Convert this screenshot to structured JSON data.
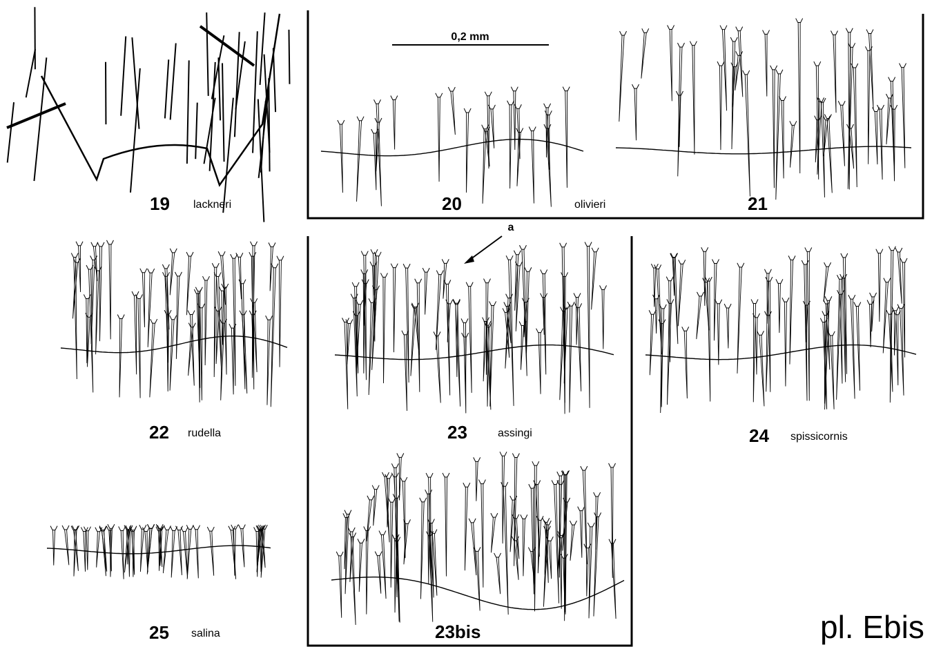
{
  "plate": "pl. Ebis",
  "scale_bar": "0,2 mm",
  "annotation": "a",
  "group_name": "olivieri",
  "figures": [
    {
      "number": "19",
      "name": "lackneri"
    },
    {
      "number": "20"
    },
    {
      "number": "21"
    },
    {
      "number": "22",
      "name": "rudella"
    },
    {
      "number": "23",
      "name": "assingi"
    },
    {
      "number": "24",
      "name": "spissicornis"
    },
    {
      "number": "25",
      "name": "salina"
    },
    {
      "number": "23bis"
    }
  ]
}
